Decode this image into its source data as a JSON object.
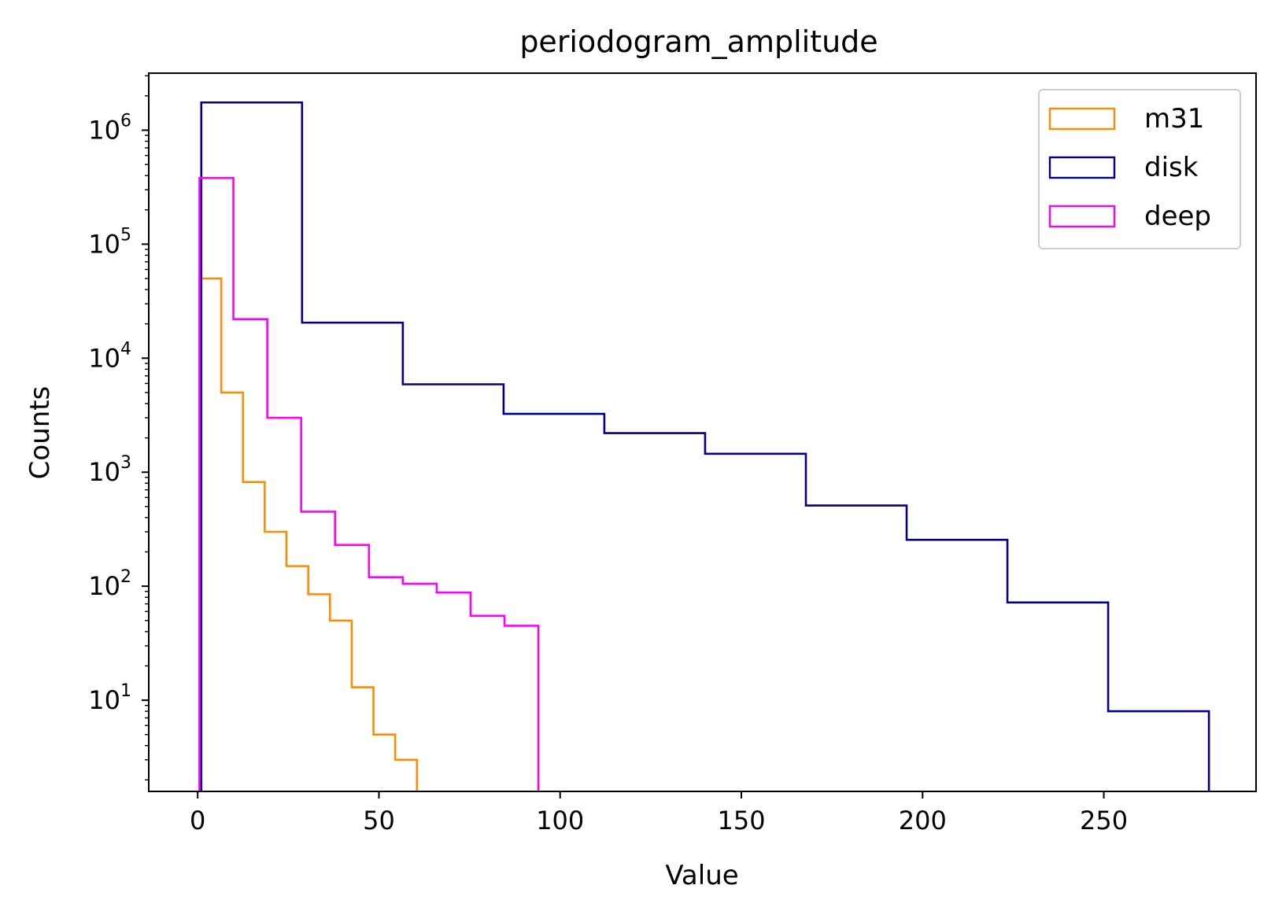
{
  "chart_data": {
    "type": "histogram",
    "title": "periodogram_amplitude",
    "xlabel": "Value",
    "ylabel": "Counts",
    "xlim": [
      -13.5,
      292
    ],
    "ylim_log10": [
      0.2,
      6.5
    ],
    "yscale": "log",
    "x_ticks": [
      0,
      50,
      100,
      150,
      200,
      250
    ],
    "y_ticks": [
      {
        "exp": 1,
        "base": "10",
        "sup": "1"
      },
      {
        "exp": 2,
        "base": "10",
        "sup": "2"
      },
      {
        "exp": 3,
        "base": "10",
        "sup": "3"
      },
      {
        "exp": 4,
        "base": "10",
        "sup": "4"
      },
      {
        "exp": 5,
        "base": "10",
        "sup": "5"
      },
      {
        "exp": 6,
        "base": "10",
        "sup": "6"
      }
    ],
    "legend_position": "top-right",
    "series": [
      {
        "name": "m31",
        "color": "#ff8c00",
        "edges": [
          0.5,
          6.5,
          12.5,
          18.5,
          24.5,
          30.5,
          36.5,
          42.5,
          48.5,
          54.5,
          60.5
        ],
        "counts": [
          50000,
          5000,
          820,
          300,
          150,
          85,
          50,
          13,
          5,
          3
        ]
      },
      {
        "name": "disk",
        "color": "#00008b",
        "edges": [
          1.0,
          28.8,
          56.6,
          84.4,
          112.2,
          140.0,
          167.8,
          195.6,
          223.4,
          251.2,
          279.0
        ],
        "counts": [
          1750000,
          20500,
          5900,
          3250,
          2200,
          1450,
          510,
          255,
          72,
          8
        ]
      },
      {
        "name": "deep",
        "color": "#ff00ff",
        "edges": [
          0.5,
          9.85,
          19.2,
          28.55,
          37.9,
          47.25,
          56.6,
          65.95,
          75.3,
          84.65,
          94.0
        ],
        "counts": [
          380000,
          22000,
          3000,
          450,
          230,
          120,
          105,
          88,
          55,
          45
        ]
      }
    ]
  }
}
